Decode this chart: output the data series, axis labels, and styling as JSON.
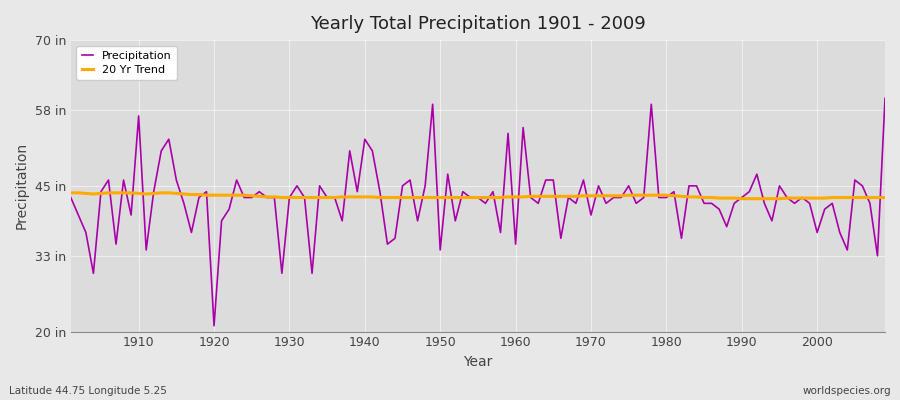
{
  "title": "Yearly Total Precipitation 1901 - 2009",
  "xlabel": "Year",
  "ylabel": "Precipitation",
  "bottom_left_label": "Latitude 44.75 Longitude 5.25",
  "bottom_right_label": "worldspecies.org",
  "ylim": [
    20,
    70
  ],
  "yticks": [
    20,
    33,
    45,
    58,
    70
  ],
  "ytick_labels": [
    "20 in",
    "33 in",
    "45 in",
    "58 in",
    "70 in"
  ],
  "fig_bg_color": "#e8e8e8",
  "plot_bg_color": "#dcdcdc",
  "precip_color": "#aa00aa",
  "trend_color": "#ffaa00",
  "years": [
    1901,
    1902,
    1903,
    1904,
    1905,
    1906,
    1907,
    1908,
    1909,
    1910,
    1911,
    1912,
    1913,
    1914,
    1915,
    1916,
    1917,
    1918,
    1919,
    1920,
    1921,
    1922,
    1923,
    1924,
    1925,
    1926,
    1927,
    1928,
    1929,
    1930,
    1931,
    1932,
    1933,
    1934,
    1935,
    1936,
    1937,
    1938,
    1939,
    1940,
    1941,
    1942,
    1943,
    1944,
    1945,
    1946,
    1947,
    1948,
    1949,
    1950,
    1951,
    1952,
    1953,
    1954,
    1955,
    1956,
    1957,
    1958,
    1959,
    1960,
    1961,
    1962,
    1963,
    1964,
    1965,
    1966,
    1967,
    1968,
    1969,
    1970,
    1971,
    1972,
    1973,
    1974,
    1975,
    1976,
    1977,
    1978,
    1979,
    1980,
    1981,
    1982,
    1983,
    1984,
    1985,
    1986,
    1987,
    1988,
    1989,
    1990,
    1991,
    1992,
    1993,
    1994,
    1995,
    1996,
    1997,
    1998,
    1999,
    2000,
    2001,
    2002,
    2003,
    2004,
    2005,
    2006,
    2007,
    2008,
    2009
  ],
  "precip": [
    43,
    40,
    37,
    30,
    44,
    46,
    35,
    46,
    40,
    57,
    34,
    44,
    51,
    53,
    46,
    42,
    37,
    43,
    44,
    21,
    39,
    41,
    46,
    43,
    43,
    44,
    43,
    43,
    30,
    43,
    45,
    43,
    30,
    45,
    43,
    43,
    39,
    51,
    44,
    53,
    51,
    44,
    35,
    36,
    45,
    46,
    39,
    45,
    59,
    34,
    47,
    39,
    44,
    43,
    43,
    42,
    44,
    37,
    54,
    35,
    55,
    43,
    42,
    46,
    46,
    36,
    43,
    42,
    46,
    40,
    45,
    42,
    43,
    43,
    45,
    42,
    43,
    59,
    43,
    43,
    44,
    36,
    45,
    45,
    42,
    42,
    41,
    38,
    42,
    43,
    44,
    47,
    42,
    39,
    45,
    43,
    42,
    43,
    42,
    37,
    41,
    42,
    37,
    34,
    46,
    45,
    42,
    33,
    60
  ],
  "trend": [
    43.8,
    43.8,
    43.7,
    43.6,
    43.7,
    43.8,
    43.8,
    43.8,
    43.8,
    43.7,
    43.6,
    43.7,
    43.8,
    43.8,
    43.7,
    43.6,
    43.5,
    43.5,
    43.4,
    43.4,
    43.4,
    43.4,
    43.4,
    43.4,
    43.3,
    43.2,
    43.1,
    43.1,
    43.0,
    43.0,
    43.0,
    43.0,
    43.0,
    43.0,
    43.0,
    43.0,
    43.1,
    43.1,
    43.1,
    43.1,
    43.1,
    43.0,
    43.0,
    43.0,
    43.0,
    43.0,
    43.0,
    43.0,
    43.0,
    43.0,
    43.0,
    43.0,
    43.0,
    43.0,
    43.0,
    43.0,
    43.0,
    43.0,
    43.1,
    43.1,
    43.1,
    43.2,
    43.2,
    43.2,
    43.2,
    43.2,
    43.2,
    43.2,
    43.3,
    43.3,
    43.3,
    43.3,
    43.3,
    43.3,
    43.4,
    43.4,
    43.4,
    43.4,
    43.4,
    43.4,
    43.3,
    43.2,
    43.1,
    43.1,
    43.0,
    43.0,
    42.9,
    42.9,
    42.9,
    42.8,
    42.8,
    42.8,
    42.8,
    42.8,
    42.8,
    42.9,
    42.9,
    42.9,
    42.9,
    42.9,
    42.9,
    43.0,
    43.0,
    43.0,
    43.0,
    43.0,
    43.0,
    43.0,
    43.0
  ]
}
